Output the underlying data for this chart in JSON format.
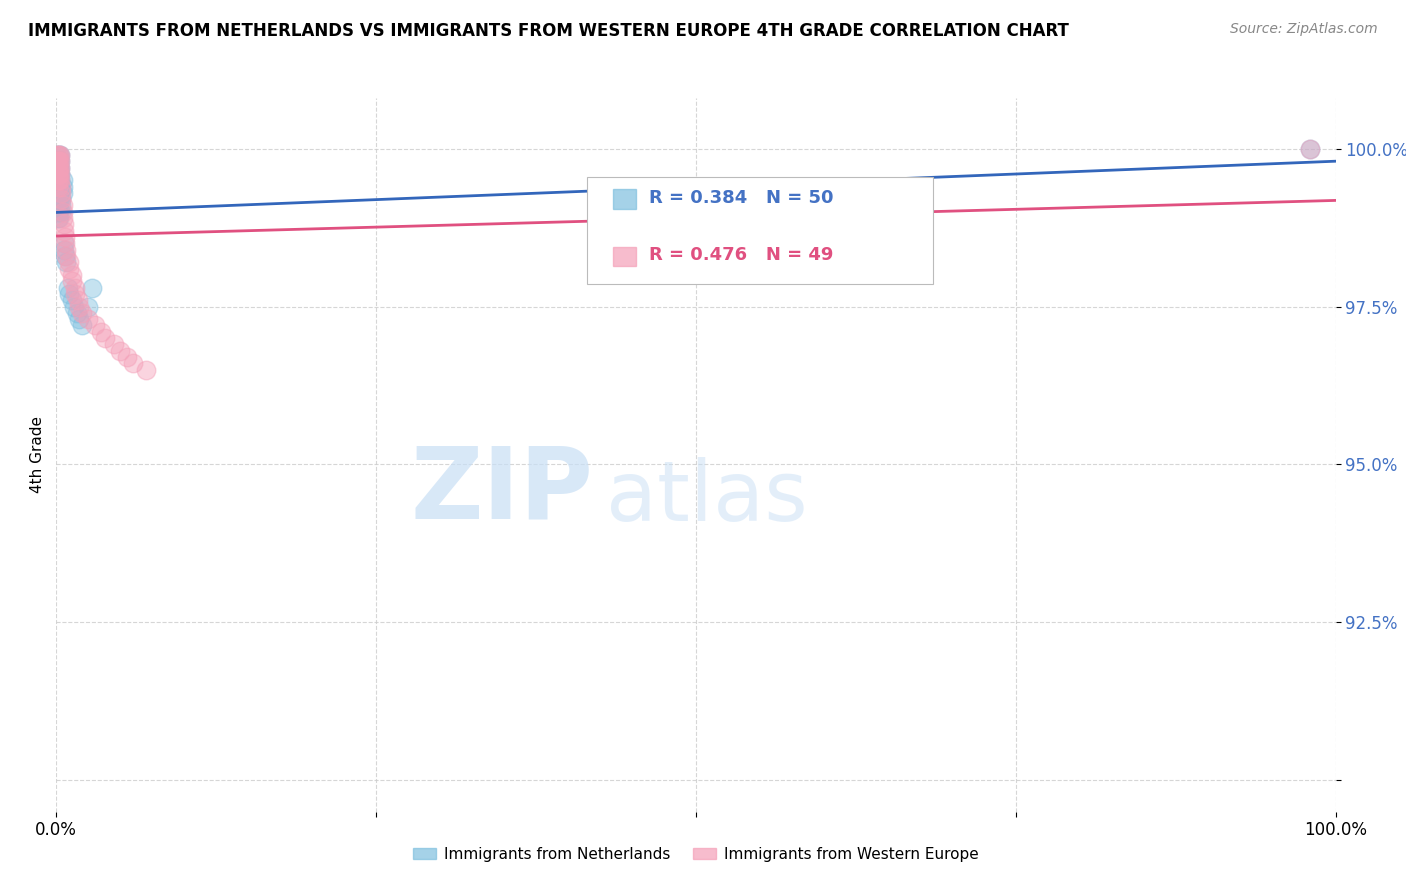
{
  "title": "IMMIGRANTS FROM NETHERLANDS VS IMMIGRANTS FROM WESTERN EUROPE 4TH GRADE CORRELATION CHART",
  "source": "Source: ZipAtlas.com",
  "ylabel": "4th Grade",
  "R_blue": 0.384,
  "N_blue": 50,
  "R_pink": 0.476,
  "N_pink": 49,
  "blue_color": "#7fbfdf",
  "pink_color": "#f4a0b8",
  "blue_line_color": "#3366bb",
  "pink_line_color": "#e05080",
  "legend_label_blue": "Immigrants from Netherlands",
  "legend_label_pink": "Immigrants from Western Europe",
  "watermark_zip": "ZIP",
  "watermark_atlas": "atlas",
  "xlim": [
    0.0,
    1.0
  ],
  "ylim": [
    0.895,
    1.008
  ],
  "yticks": [
    0.9,
    0.925,
    0.95,
    0.975,
    1.0
  ],
  "ytick_labels": [
    "",
    "92.5%",
    "95.0%",
    "97.5%",
    "100.0%"
  ],
  "xticks": [
    0.0,
    0.25,
    0.5,
    0.75,
    1.0
  ],
  "xtick_labels": [
    "0.0%",
    "",
    "",
    "",
    "100.0%"
  ],
  "blue_x": [
    0.0,
    0.0,
    0.001,
    0.001,
    0.001,
    0.001,
    0.001,
    0.001,
    0.001,
    0.001,
    0.001,
    0.001,
    0.002,
    0.002,
    0.002,
    0.002,
    0.002,
    0.002,
    0.002,
    0.002,
    0.002,
    0.002,
    0.002,
    0.003,
    0.003,
    0.003,
    0.003,
    0.003,
    0.003,
    0.003,
    0.004,
    0.004,
    0.004,
    0.005,
    0.005,
    0.005,
    0.006,
    0.006,
    0.007,
    0.008,
    0.009,
    0.01,
    0.012,
    0.014,
    0.016,
    0.018,
    0.02,
    0.025,
    0.028,
    0.98
  ],
  "blue_y": [
    0.998,
    0.999,
    0.998,
    0.997,
    0.996,
    0.995,
    0.994,
    0.993,
    0.992,
    0.991,
    0.99,
    0.989,
    0.999,
    0.998,
    0.997,
    0.996,
    0.995,
    0.994,
    0.993,
    0.992,
    0.991,
    0.99,
    0.989,
    0.999,
    0.998,
    0.997,
    0.996,
    0.995,
    0.994,
    0.993,
    0.992,
    0.991,
    0.99,
    0.995,
    0.994,
    0.993,
    0.985,
    0.984,
    0.983,
    0.982,
    0.978,
    0.977,
    0.976,
    0.975,
    0.974,
    0.973,
    0.972,
    0.975,
    0.978,
    1.0
  ],
  "pink_x": [
    0.0,
    0.0,
    0.001,
    0.001,
    0.001,
    0.001,
    0.001,
    0.001,
    0.002,
    0.002,
    0.002,
    0.002,
    0.002,
    0.003,
    0.003,
    0.003,
    0.003,
    0.003,
    0.004,
    0.004,
    0.004,
    0.005,
    0.005,
    0.005,
    0.006,
    0.006,
    0.007,
    0.007,
    0.008,
    0.008,
    0.01,
    0.01,
    0.012,
    0.012,
    0.015,
    0.015,
    0.017,
    0.018,
    0.02,
    0.025,
    0.03,
    0.035,
    0.038,
    0.045,
    0.05,
    0.055,
    0.06,
    0.07,
    0.98
  ],
  "pink_y": [
    0.999,
    0.998,
    0.999,
    0.998,
    0.997,
    0.996,
    0.995,
    0.994,
    0.999,
    0.998,
    0.997,
    0.996,
    0.995,
    0.999,
    0.998,
    0.997,
    0.996,
    0.995,
    0.994,
    0.993,
    0.992,
    0.991,
    0.99,
    0.989,
    0.988,
    0.987,
    0.986,
    0.985,
    0.984,
    0.983,
    0.982,
    0.981,
    0.98,
    0.979,
    0.978,
    0.977,
    0.976,
    0.975,
    0.974,
    0.973,
    0.972,
    0.971,
    0.97,
    0.969,
    0.968,
    0.967,
    0.966,
    0.965,
    1.0
  ]
}
